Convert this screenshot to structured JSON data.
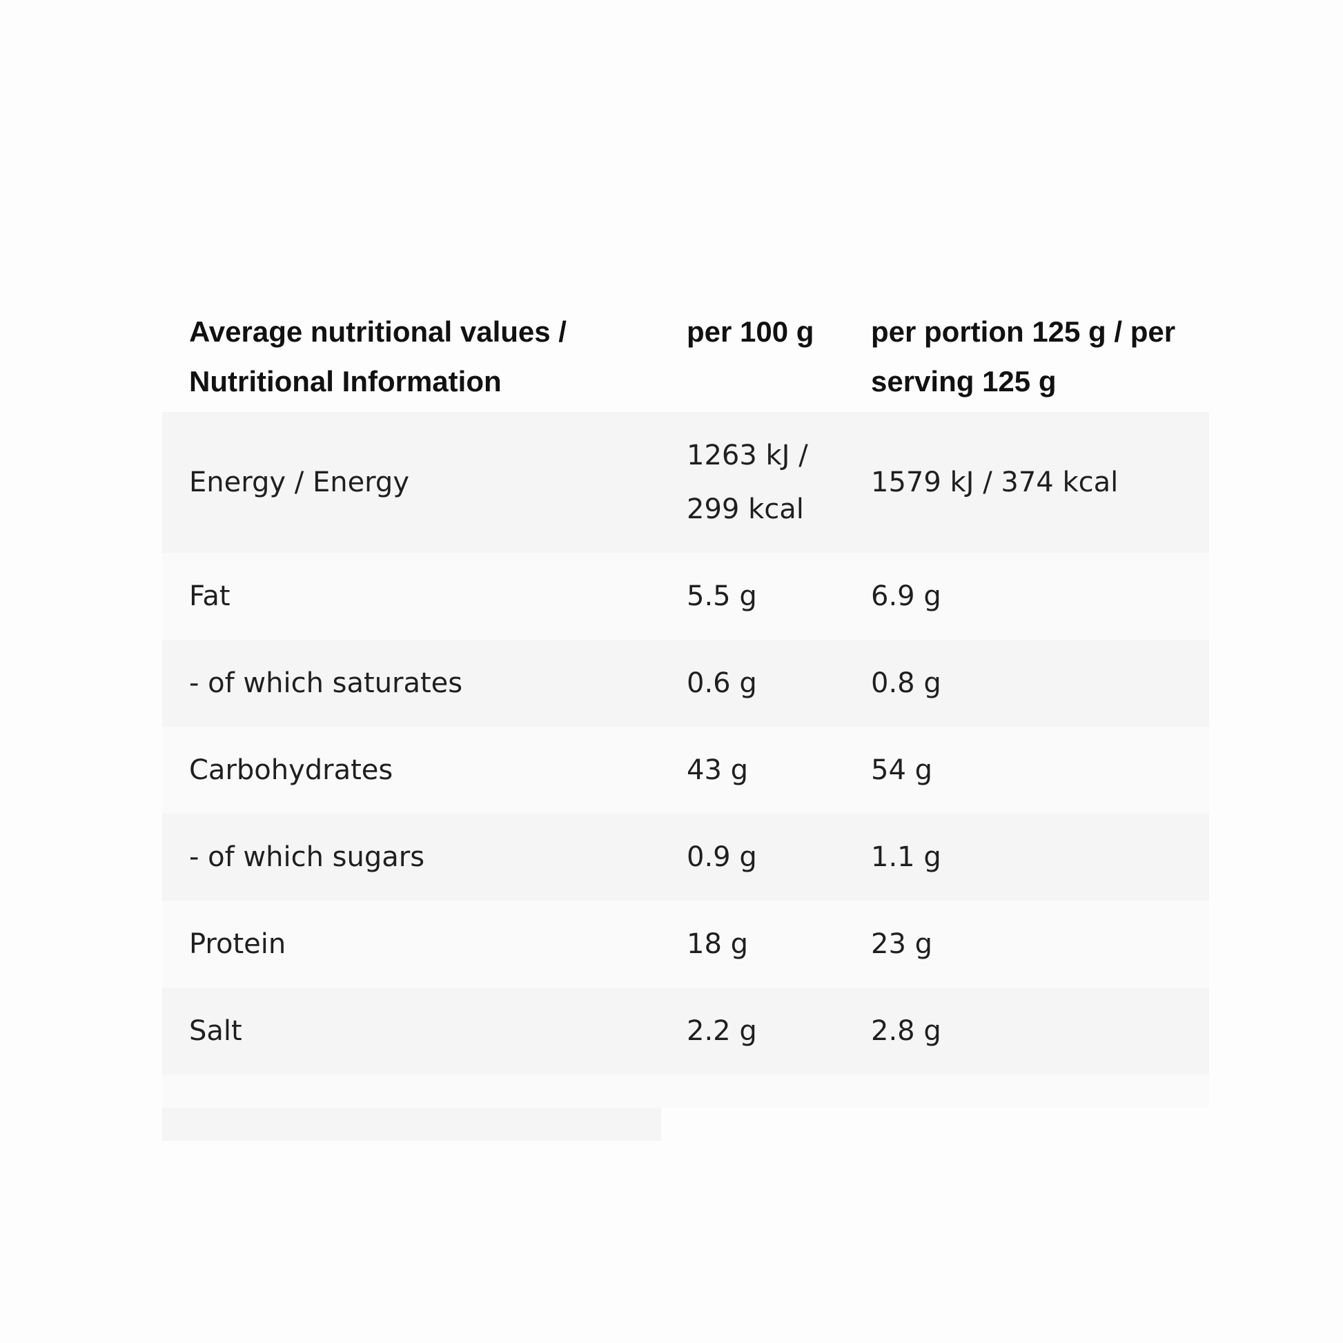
{
  "table": {
    "headers": [
      "Average nutritional values / Nutritional Information",
      "per 100 g",
      "per portion 125 g / per serving 125 g"
    ],
    "rows": [
      {
        "label": "Energy / Energy",
        "per_100g": "1263 kJ / 299 kcal",
        "per_portion": "1579 kJ / 374 kcal"
      },
      {
        "label": "Fat",
        "per_100g": "5.5 g",
        "per_portion": "6.9 g"
      },
      {
        "label": "- of which saturates",
        "per_100g": "0.6 g",
        "per_portion": "0.8 g"
      },
      {
        "label": "Carbohydrates",
        "per_100g": "43 g",
        "per_portion": "54 g"
      },
      {
        "label": "- of which sugars",
        "per_100g": "0.9 g",
        "per_portion": "1.1 g"
      },
      {
        "label": "Protein",
        "per_100g": "18 g",
        "per_portion": "23 g"
      },
      {
        "label": "Salt",
        "per_100g": "2.2 g",
        "per_portion": "2.8 g"
      }
    ]
  },
  "colors": {
    "row_odd": "#f5f5f5",
    "row_even": "#fafafa",
    "text": "#1f1f1f"
  }
}
